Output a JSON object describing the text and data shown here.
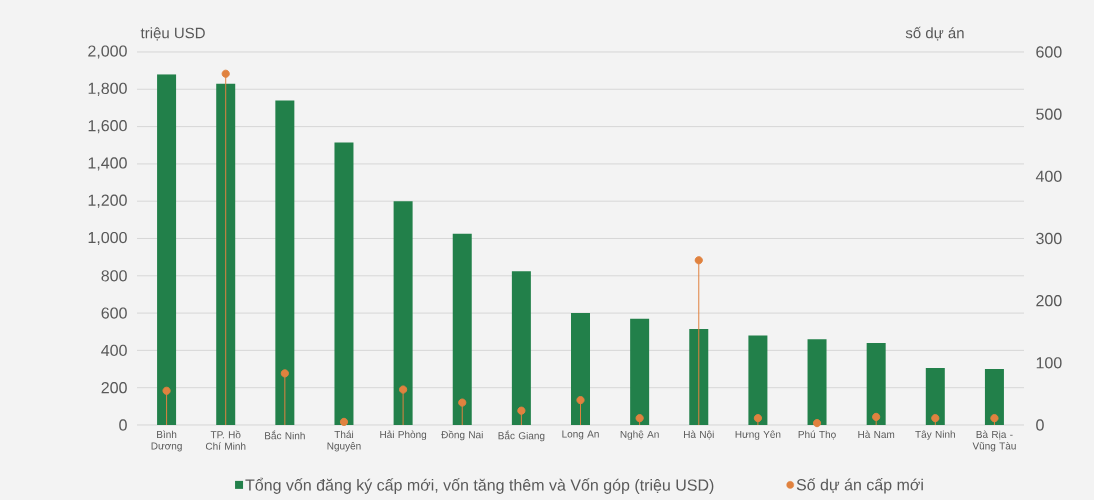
{
  "chart_data": {
    "type": "bar",
    "categories": [
      "Bình Dương",
      "TP. Hồ Chí Minh",
      "Bắc Ninh",
      "Thái Nguyên",
      "Hải Phòng",
      "Đồng Nai",
      "Bắc Giang",
      "Long An",
      "Nghệ An",
      "Hà Nội",
      "Hưng Yên",
      "Phú Thọ",
      "Hà Nam",
      "Tây Ninh",
      "Bà Rịa - Vũng Tàu"
    ],
    "series": [
      {
        "name": "Tổng vốn đăng ký cấp mới, vốn tăng thêm và Vốn góp (triệu USD)",
        "color": "#22804a",
        "values": [
          1880,
          1830,
          1740,
          1515,
          1200,
          1025,
          825,
          600,
          570,
          515,
          480,
          460,
          440,
          305,
          300
        ]
      },
      {
        "name": "Số dự án cấp mới",
        "type": "lollipop",
        "axis": "y2",
        "color": "#e0823f",
        "values": [
          55,
          565,
          83,
          5,
          57,
          36,
          23,
          40,
          11,
          265,
          11,
          3,
          13,
          11,
          11
        ]
      }
    ],
    "ylabel": "triệu USD",
    "y2label": "số dự án",
    "ylim": [
      0,
      2000
    ],
    "yticks": [
      0,
      200,
      400,
      600,
      800,
      {
        "value": 1000,
        "label": "1,000"
      },
      {
        "value": 1200,
        "label": "1,200"
      },
      {
        "value": 1400,
        "label": "1,400"
      },
      {
        "value": 1600,
        "label": "1,600"
      },
      {
        "value": 1800,
        "label": "1,800"
      },
      {
        "value": 2000,
        "label": "2,000"
      }
    ],
    "y2lim": [
      0,
      600
    ],
    "y2ticks": [
      0,
      100,
      200,
      300,
      400,
      500,
      600
    ],
    "grid": "y",
    "legend": "bottom",
    "marker": "circle"
  }
}
